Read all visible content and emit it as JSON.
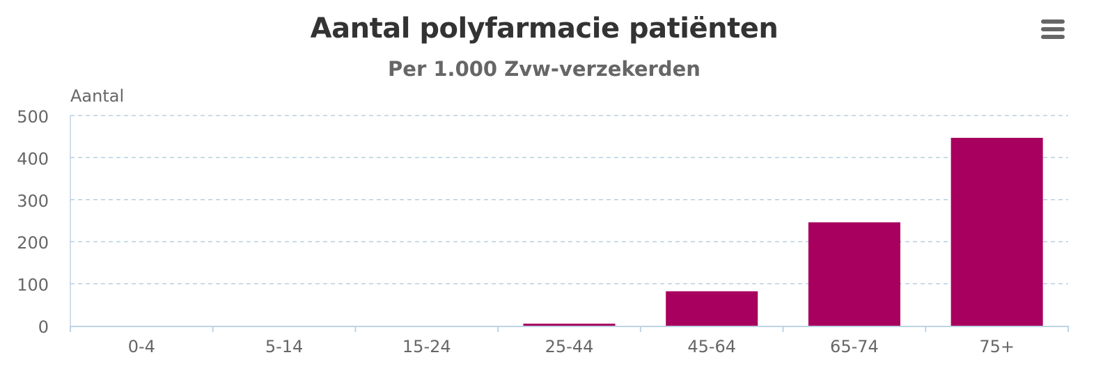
{
  "chart_data": {
    "type": "bar",
    "title": "Aantal polyfarmacie patiënten",
    "subtitle": "Per 1.000 Zvw-verzekerden",
    "ylabel": "Aantal",
    "xlabel": "",
    "categories": [
      "0-4",
      "5-14",
      "15-24",
      "25-44",
      "45-64",
      "65-74",
      "75+"
    ],
    "values": [
      0,
      0,
      0,
      5,
      82,
      246,
      447
    ],
    "ylim": [
      0,
      500
    ],
    "yticks": [
      0,
      100,
      200,
      300,
      400,
      500
    ],
    "grid": true,
    "legend": "none",
    "colors": {
      "bar": "#a8005f",
      "grid": "#b7cfe0",
      "axis": "#bdd3e6",
      "text": "#666666",
      "title": "#333333"
    }
  },
  "menu": {
    "icon": "hamburger-menu-icon"
  }
}
